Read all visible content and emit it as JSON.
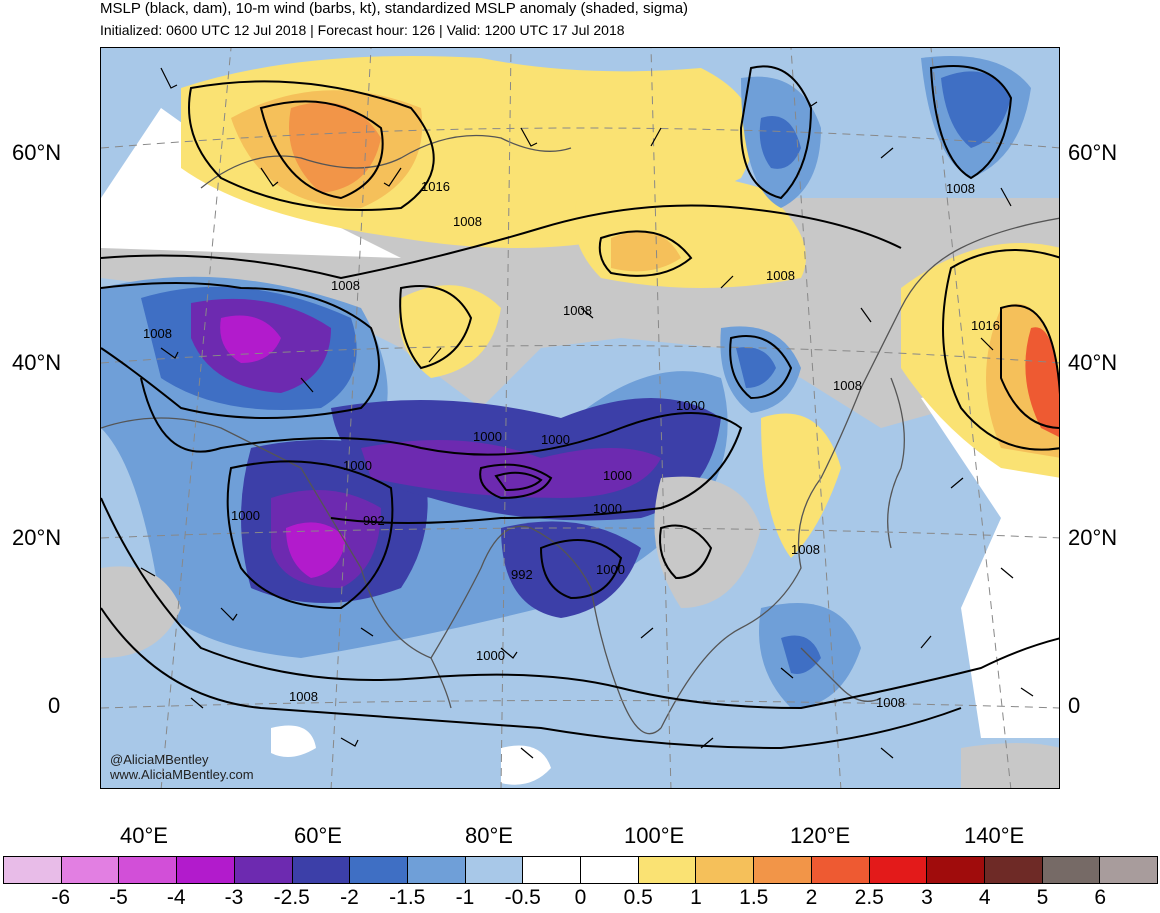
{
  "title": "MSLP (black, dam), 10-m wind (barbs, kt), standardized MSLP anomaly (shaded, sigma)",
  "subtitle": "Initialized: 0600 UTC 12 Jul 2018 | Forecast hour: 126 | Valid: 1200 UTC 17 Jul 2018",
  "lat_labels": [
    "60°N",
    "40°N",
    "20°N",
    "0"
  ],
  "lon_labels": [
    "40°E",
    "60°E",
    "80°E",
    "100°E",
    "120°E",
    "140°E"
  ],
  "contour_labels": [
    "1016",
    "1008",
    "1008",
    "1008",
    "1008",
    "1008",
    "1016",
    "1008",
    "1008",
    "1000",
    "1000",
    "1000",
    "1000",
    "1000",
    "1000",
    "992",
    "992",
    "1000",
    "1000",
    "1000",
    "1008",
    "1008",
    "1008"
  ],
  "colorbar": {
    "labels": [
      "-6",
      "-5",
      "-4",
      "-3",
      "-2.5",
      "-2",
      "-1.5",
      "-1",
      "-0.5",
      "0",
      "0.5",
      "1",
      "1.5",
      "2",
      "2.5",
      "3",
      "4",
      "5",
      "6"
    ],
    "colors": [
      "#e8bce8",
      "#e27fe2",
      "#d24fd8",
      "#b21bcc",
      "#6d2ab0",
      "#3c3fa8",
      "#3f6fc4",
      "#6f9fd8",
      "#a8c8e8",
      "#ffffff",
      "#ffffff",
      "#fae273",
      "#f5c05a",
      "#f29548",
      "#ee5a32",
      "#e31a1a",
      "#a00c0c",
      "#6e2a26",
      "#766a66",
      "#a89c9c"
    ]
  },
  "credits": [
    "@AliciaMBentley",
    "www.AliciaMBentley.com"
  ],
  "colors": {
    "land_outline": "#555555",
    "grey_shade": "#c8c8c8"
  }
}
